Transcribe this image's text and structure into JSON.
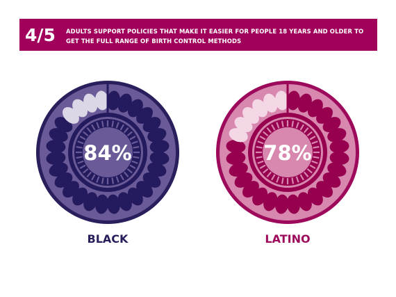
{
  "header": {
    "fraction": "4/5",
    "text": "ADULTS SUPPORT POLICIES THAT MAKE IT EASIER FOR PEOPLE 18 YEARS AND OLDER TO GET THE FULL RANGE OF BIRTH CONTROL METHODS",
    "background_color": "#a1005b"
  },
  "chart_data": [
    {
      "type": "pie",
      "label": "BLACK",
      "value": 84,
      "value_label": "84%",
      "colors": {
        "outer_ring": "#2a1e5c",
        "face": "#6a5b98",
        "pill_filled": "#241a5e",
        "pill_empty": "#dcd7e7",
        "label": "#2a1e5c"
      }
    },
    {
      "type": "pie",
      "label": "LATINO",
      "value": 78,
      "value_label": "78%",
      "colors": {
        "outer_ring": "#9d0a5b",
        "face": "#d887af",
        "pill_filled": "#96004f",
        "pill_empty": "#f4d7e5",
        "label": "#9d0a5b"
      }
    }
  ]
}
